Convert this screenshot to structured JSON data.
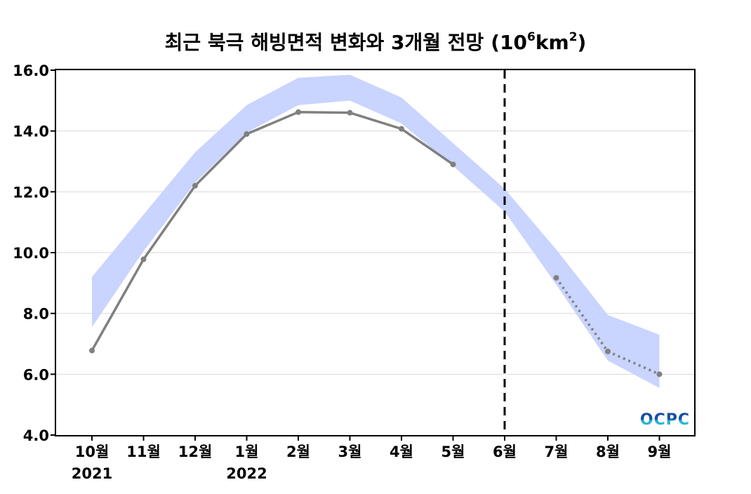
{
  "chart_data": {
    "type": "line",
    "title": "최근 북극 해빙면적 변화와 3개월 전망",
    "title_unit_base": "(10",
    "title_unit_exp1": "6",
    "title_unit_mid": "km",
    "title_unit_exp2": "2",
    "title_unit_end": ")",
    "categories": [
      "10월",
      "11월",
      "12월",
      "1월",
      "2월",
      "3월",
      "4월",
      "5월",
      "6월",
      "7월",
      "8월",
      "9월"
    ],
    "year_labels": [
      {
        "category": "10월",
        "label": "2021"
      },
      {
        "category": "1월",
        "label": "2022"
      }
    ],
    "ylim": [
      4.0,
      16.0
    ],
    "yticks": [
      "4.0",
      "6.0",
      "8.0",
      "10.0",
      "12.0",
      "14.0",
      "16.0"
    ],
    "grid": true,
    "forecast_start_category": "6월",
    "series": [
      {
        "style": "solid",
        "color": "#808080",
        "values": [
          6.78,
          9.78,
          12.2,
          13.9,
          14.62,
          14.6,
          14.07,
          12.9,
          null,
          null,
          null,
          null
        ]
      },
      {
        "style": "dotted",
        "color": "#808080",
        "values": [
          null,
          null,
          null,
          null,
          null,
          null,
          null,
          null,
          null,
          9.17,
          6.75,
          6.0
        ]
      }
    ],
    "band": {
      "color": "#c9d4ff",
      "lower": [
        7.55,
        10.05,
        12.3,
        13.95,
        14.85,
        15.0,
        14.25,
        12.85,
        11.35,
        8.95,
        6.45,
        5.55
      ],
      "upper": [
        9.2,
        11.25,
        13.3,
        14.85,
        15.75,
        15.85,
        15.1,
        13.6,
        12.1,
        10.1,
        7.95,
        7.3
      ]
    }
  },
  "logo": {
    "text": "OCPC",
    "color_top": "#1a4fa0",
    "color_bottom": "#29b6d6"
  }
}
